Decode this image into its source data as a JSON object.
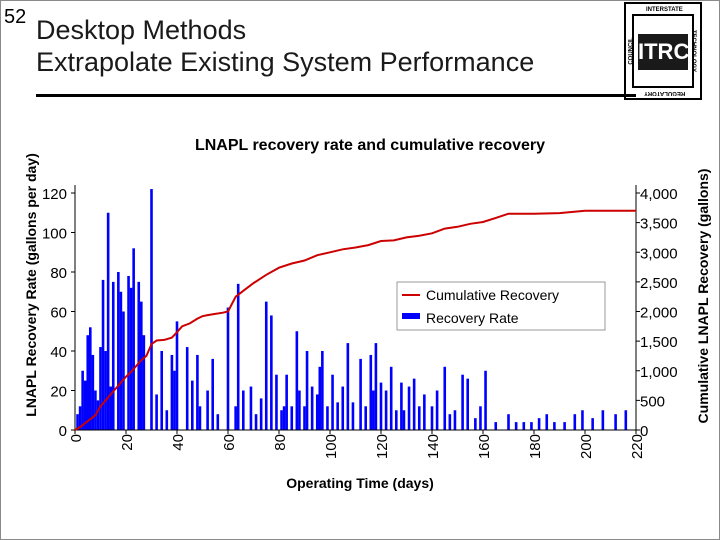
{
  "slide": {
    "number": "52",
    "title_line1": "Desktop Methods",
    "title_line2": "Extrapolate Existing System Performance"
  },
  "logo": {
    "mark": "ITRC",
    "top": "INTERSTATE",
    "left": "COUNCIL",
    "right": "TECHNOLOGY",
    "bottom": "REGULATORY"
  },
  "chart_data": {
    "type": "bar",
    "title": "LNAPL recovery rate and cumulative recovery",
    "xlabel": "Operating Time (days)",
    "ylabel": "LNAPL Recovery Rate (gallons per day)",
    "y2label": "Cumulative LNAPL Recovery (gallons)",
    "xlim": [
      0,
      220
    ],
    "ylim": [
      0,
      120
    ],
    "y2lim": [
      0,
      4000
    ],
    "x_ticks": [
      "0",
      "20",
      "40",
      "60",
      "80",
      "100",
      "120",
      "140",
      "160",
      "180",
      "200",
      "220"
    ],
    "y_ticks": [
      "0",
      "20",
      "40",
      "60",
      "80",
      "100",
      "120"
    ],
    "y2_ticks": [
      "0",
      "500",
      "1,000",
      "1,500",
      "2,000",
      "2,500",
      "3,000",
      "3,500",
      "4,000"
    ],
    "legend_position": "center-right",
    "series": [
      {
        "name": "Recovery Rate",
        "type": "bar",
        "color": "#0000ff",
        "x": [
          1,
          2,
          3,
          4,
          5,
          6,
          7,
          8,
          9,
          10,
          11,
          12,
          13,
          14,
          15,
          17,
          18,
          19,
          21,
          22,
          23,
          25,
          26,
          27,
          30,
          32,
          34,
          36,
          38,
          39,
          40,
          44,
          46,
          48,
          49,
          52,
          54,
          56,
          60,
          63,
          64,
          66,
          69,
          71,
          73,
          75,
          77,
          79,
          81,
          82,
          83,
          85,
          87,
          88,
          90,
          91,
          93,
          95,
          96,
          97,
          99,
          101,
          103,
          105,
          107,
          109,
          112,
          114,
          116,
          117,
          118,
          120,
          122,
          124,
          126,
          128,
          129,
          131,
          133,
          135,
          137,
          140,
          142,
          145,
          147,
          149,
          152,
          154,
          157,
          159,
          161,
          165,
          170,
          173,
          176,
          179,
          182,
          185,
          188,
          192,
          196,
          199,
          203,
          207,
          212,
          216
        ],
        "values": [
          8,
          12,
          30,
          25,
          48,
          52,
          38,
          20,
          15,
          42,
          76,
          40,
          110,
          22,
          75,
          80,
          70,
          60,
          78,
          72,
          92,
          75,
          65,
          48,
          122,
          18,
          40,
          10,
          38,
          30,
          55,
          42,
          25,
          38,
          12,
          20,
          36,
          8,
          62,
          12,
          74,
          20,
          22,
          8,
          16,
          65,
          58,
          28,
          10,
          12,
          28,
          12,
          50,
          20,
          12,
          40,
          22,
          18,
          32,
          40,
          12,
          28,
          14,
          22,
          44,
          14,
          36,
          12,
          38,
          20,
          44,
          24,
          20,
          32,
          10,
          24,
          10,
          22,
          26,
          12,
          18,
          12,
          20,
          32,
          8,
          10,
          28,
          26,
          6,
          12,
          30,
          4,
          8,
          4,
          4,
          4,
          6,
          8,
          4,
          4,
          8,
          10,
          6,
          10,
          8,
          10
        ]
      },
      {
        "name": "Cumulative Recovery",
        "type": "line",
        "color": "#cc0000",
        "axis": "y2",
        "x": [
          0,
          2,
          5,
          8,
          10,
          12,
          14,
          16,
          18,
          20,
          22,
          24,
          26,
          28,
          30,
          32,
          35,
          38,
          40,
          42,
          45,
          48,
          50,
          52,
          55,
          58,
          60,
          63,
          66,
          70,
          75,
          80,
          85,
          90,
          95,
          100,
          105,
          110,
          115,
          120,
          125,
          130,
          135,
          140,
          145,
          150,
          155,
          160,
          165,
          170,
          175,
          180,
          190,
          200,
          210,
          220
        ],
        "values": [
          0,
          50,
          150,
          250,
          400,
          500,
          600,
          700,
          800,
          900,
          980,
          1080,
          1180,
          1250,
          1450,
          1510,
          1520,
          1560,
          1650,
          1750,
          1800,
          1880,
          1920,
          1940,
          1960,
          1980,
          2000,
          2250,
          2350,
          2480,
          2620,
          2740,
          2810,
          2860,
          2950,
          3000,
          3050,
          3080,
          3120,
          3190,
          3200,
          3250,
          3280,
          3320,
          3400,
          3430,
          3480,
          3510,
          3580,
          3650,
          3650,
          3650,
          3660,
          3700,
          3700,
          3700
        ]
      }
    ]
  }
}
